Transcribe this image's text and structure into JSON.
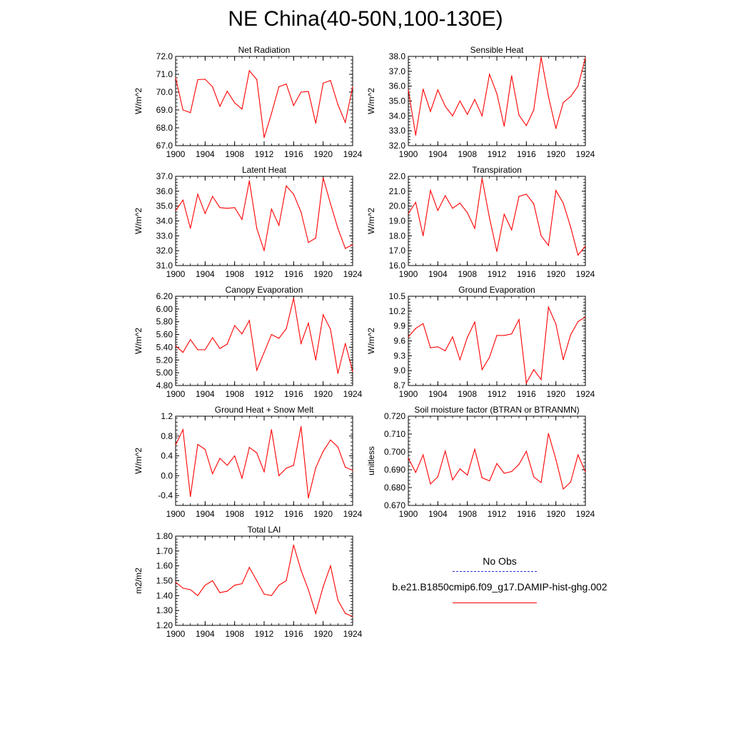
{
  "title": "NE China(40-50N,100-130E)",
  "legend": {
    "entries": [
      {
        "label": "No Obs",
        "color": "#2b2bd0",
        "style": "dashed"
      },
      {
        "label": "b.e21.B1850cmip6.f09_g17.DAMIP-hist-ghg.002",
        "color": "#ff0000",
        "style": "solid"
      }
    ]
  },
  "series_color": "#ff0000",
  "x_years": [
    1900,
    1901,
    1902,
    1903,
    1904,
    1905,
    1906,
    1907,
    1908,
    1909,
    1910,
    1911,
    1912,
    1913,
    1914,
    1915,
    1916,
    1917,
    1918,
    1919,
    1920,
    1921,
    1922,
    1923,
    1924
  ],
  "x_ticks": [
    1900,
    1904,
    1908,
    1912,
    1916,
    1920,
    1924
  ],
  "chart_data": [
    {
      "type": "line",
      "title": "Net Radiation",
      "xlabel": "",
      "ylabel": "W/m^2",
      "ylim": [
        67.0,
        72.0
      ],
      "yticks": [
        "67.0",
        "68.0",
        "69.0",
        "70.0",
        "71.0",
        "72.0"
      ],
      "values": [
        70.8,
        69.0,
        68.85,
        70.7,
        70.72,
        70.3,
        69.2,
        70.05,
        69.4,
        69.05,
        71.2,
        70.7,
        67.45,
        68.8,
        70.3,
        70.45,
        69.25,
        70.0,
        70.03,
        68.25,
        70.5,
        70.65,
        69.3,
        68.3,
        70.3
      ]
    },
    {
      "type": "line",
      "title": "Sensible Heat",
      "xlabel": "",
      "ylabel": "W/m^2",
      "ylim": [
        32.0,
        38.0
      ],
      "yticks": [
        "32.0",
        "33.0",
        "34.0",
        "35.0",
        "36.0",
        "37.0",
        "38.0"
      ],
      "values": [
        35.75,
        32.7,
        35.8,
        34.3,
        35.75,
        34.65,
        34.0,
        35.0,
        34.1,
        35.1,
        34.0,
        36.8,
        35.5,
        33.3,
        36.7,
        34.05,
        33.35,
        34.4,
        37.95,
        35.3,
        33.15,
        34.9,
        35.3,
        36.0,
        37.9
      ]
    },
    {
      "type": "line",
      "title": "Latent Heat",
      "xlabel": "",
      "ylabel": "W/m^2",
      "ylim": [
        31.0,
        37.0
      ],
      "yticks": [
        "31.0",
        "32.0",
        "33.0",
        "34.0",
        "35.0",
        "36.0",
        "37.0"
      ],
      "values": [
        34.7,
        35.4,
        33.5,
        35.8,
        34.5,
        35.65,
        34.9,
        34.85,
        34.9,
        34.1,
        36.7,
        33.5,
        32.0,
        34.8,
        33.7,
        36.35,
        35.8,
        34.6,
        32.55,
        32.85,
        36.9,
        35.15,
        33.5,
        32.15,
        32.4
      ]
    },
    {
      "type": "line",
      "title": "Transpiration",
      "xlabel": "",
      "ylabel": "W/m^2",
      "ylim": [
        16.0,
        22.0
      ],
      "yticks": [
        "16.0",
        "17.0",
        "18.0",
        "19.0",
        "20.0",
        "21.0",
        "22.0"
      ],
      "values": [
        19.5,
        20.25,
        18.0,
        21.05,
        19.7,
        20.7,
        19.85,
        20.2,
        19.55,
        18.5,
        21.85,
        19.2,
        16.95,
        19.45,
        18.4,
        20.65,
        20.8,
        20.15,
        18.0,
        17.35,
        21.05,
        20.2,
        18.6,
        16.7,
        17.3
      ]
    },
    {
      "type": "line",
      "title": "Canopy Evaporation",
      "xlabel": "",
      "ylabel": "W/m^2",
      "ylim": [
        4.8,
        6.2
      ],
      "yticks": [
        "4.80",
        "5.00",
        "5.20",
        "5.40",
        "5.60",
        "5.80",
        "6.00",
        "6.20"
      ],
      "values": [
        5.42,
        5.32,
        5.52,
        5.36,
        5.36,
        5.55,
        5.38,
        5.45,
        5.74,
        5.61,
        5.82,
        5.04,
        5.32,
        5.6,
        5.54,
        5.69,
        6.17,
        5.46,
        5.78,
        5.2,
        5.91,
        5.68,
        4.99,
        5.46,
        5.02
      ]
    },
    {
      "type": "line",
      "title": "Ground Evaporation",
      "xlabel": "",
      "ylabel": "W/m^2",
      "ylim": [
        8.7,
        10.5
      ],
      "yticks": [
        "8.7",
        "9.0",
        "9.3",
        "9.6",
        "9.9",
        "10.2",
        "10.5"
      ],
      "values": [
        9.68,
        9.85,
        9.95,
        9.46,
        9.48,
        9.4,
        9.68,
        9.22,
        9.67,
        9.98,
        9.02,
        9.27,
        9.71,
        9.71,
        9.74,
        10.03,
        8.75,
        9.02,
        8.82,
        10.28,
        9.94,
        9.22,
        9.72,
        9.99,
        10.08
      ]
    },
    {
      "type": "line",
      "title": "Ground Heat + Snow Melt",
      "xlabel": "",
      "ylabel": "W/m^2",
      "ylim": [
        -0.6,
        1.2
      ],
      "yticks": [
        "-0.4",
        "0.0",
        "0.4",
        "0.8",
        "1.2"
      ],
      "values": [
        0.62,
        0.93,
        -0.42,
        0.63,
        0.53,
        0.04,
        0.35,
        0.21,
        0.4,
        -0.05,
        0.57,
        0.46,
        0.08,
        0.93,
        0.0,
        0.15,
        0.21,
        0.99,
        -0.45,
        0.16,
        0.49,
        0.72,
        0.58,
        0.17,
        0.11
      ]
    },
    {
      "type": "line",
      "title": "Soil moisture factor (BTRAN or BTRANMN)",
      "xlabel": "",
      "ylabel": "unitless",
      "ylim": [
        0.67,
        0.72
      ],
      "yticks": [
        "0.670",
        "0.680",
        "0.690",
        "0.700",
        "0.710",
        "0.720"
      ],
      "values": [
        0.6965,
        0.6885,
        0.6983,
        0.682,
        0.686,
        0.7005,
        0.6843,
        0.6905,
        0.687,
        0.7015,
        0.6855,
        0.6838,
        0.6935,
        0.688,
        0.689,
        0.693,
        0.7003,
        0.686,
        0.6828,
        0.7103,
        0.6958,
        0.6792,
        0.683,
        0.6983,
        0.6888
      ]
    },
    {
      "type": "line",
      "title": "Total LAI",
      "xlabel": "",
      "ylabel": "m2/m2",
      "ylim": [
        1.2,
        1.8
      ],
      "yticks": [
        "1.20",
        "1.30",
        "1.40",
        "1.50",
        "1.60",
        "1.70",
        "1.80"
      ],
      "values": [
        1.49,
        1.45,
        1.44,
        1.4,
        1.47,
        1.5,
        1.42,
        1.43,
        1.47,
        1.48,
        1.59,
        1.5,
        1.41,
        1.4,
        1.47,
        1.5,
        1.74,
        1.57,
        1.44,
        1.28,
        1.46,
        1.6,
        1.37,
        1.28,
        1.26
      ]
    }
  ]
}
